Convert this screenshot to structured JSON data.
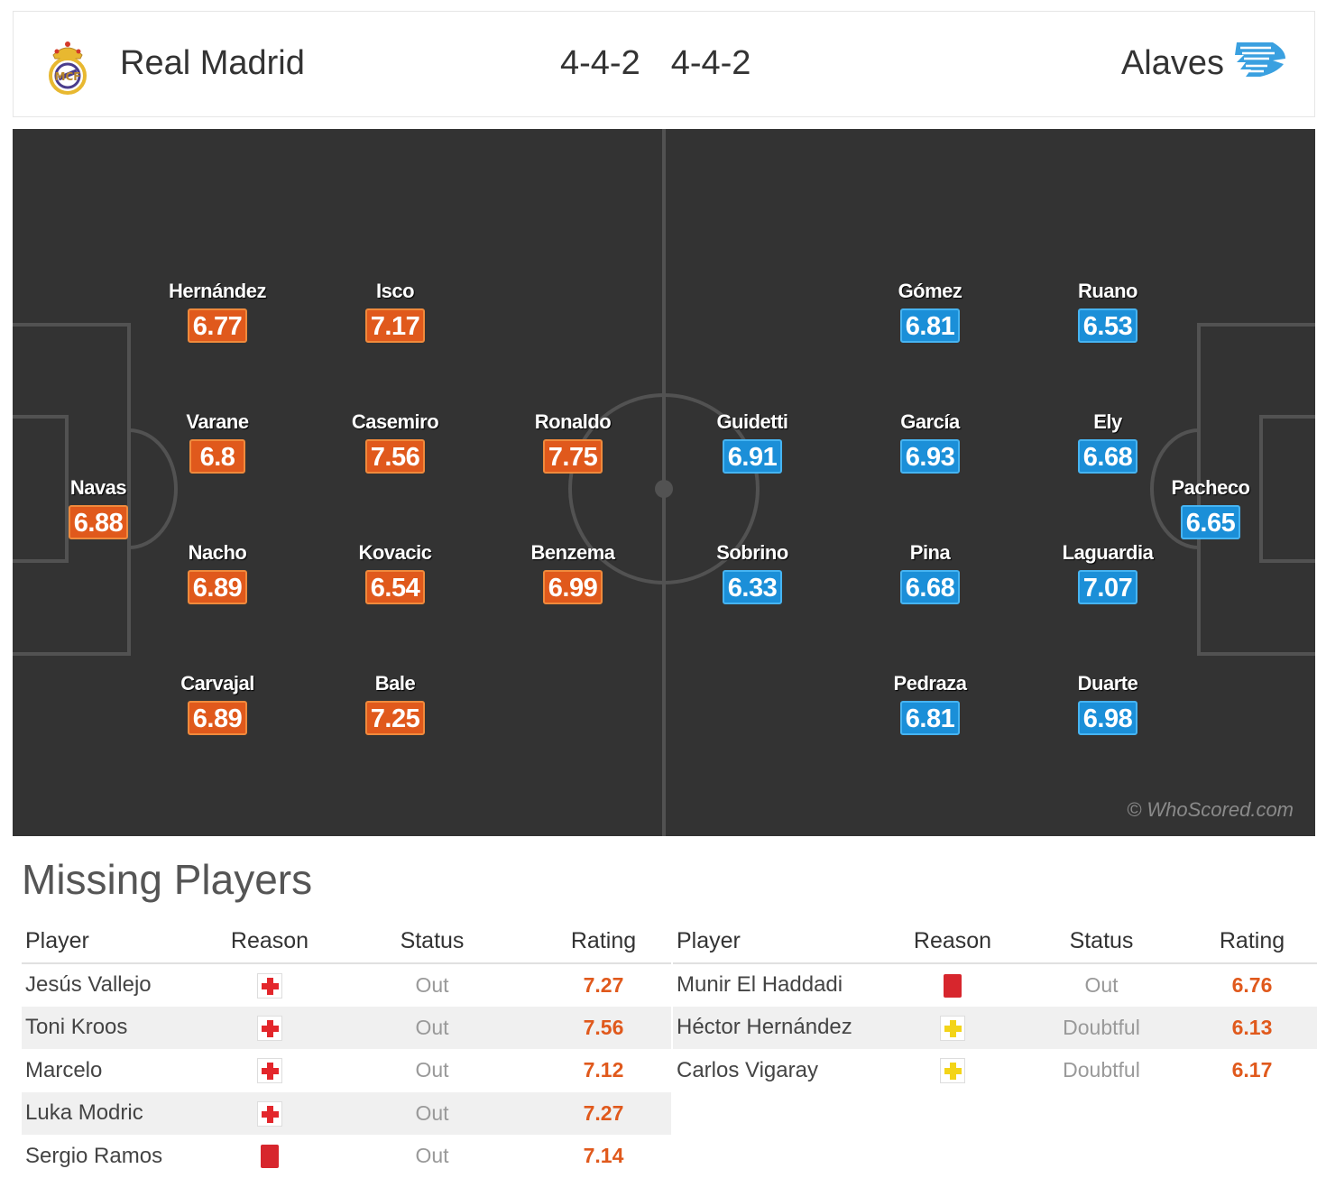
{
  "header": {
    "home_team": "Real Madrid",
    "home_formation": "4-4-2",
    "away_formation": "4-4-2",
    "away_team": "Alaves",
    "home_crest_icon": "real-madrid-crest-icon",
    "away_crest_icon": "alaves-crest-icon"
  },
  "pitch": {
    "watermark": "© WhoScored.com",
    "home_color": "#e0591c",
    "away_color": "#1b8fd8",
    "home_players": [
      {
        "name": "Navas",
        "rating": "6.88"
      },
      {
        "name": "Hernández",
        "rating": "6.77"
      },
      {
        "name": "Varane",
        "rating": "6.8"
      },
      {
        "name": "Nacho",
        "rating": "6.89"
      },
      {
        "name": "Carvajal",
        "rating": "6.89"
      },
      {
        "name": "Isco",
        "rating": "7.17"
      },
      {
        "name": "Casemiro",
        "rating": "7.56"
      },
      {
        "name": "Kovacic",
        "rating": "6.54"
      },
      {
        "name": "Bale",
        "rating": "7.25"
      },
      {
        "name": "Ronaldo",
        "rating": "7.75"
      },
      {
        "name": "Benzema",
        "rating": "6.99"
      }
    ],
    "away_players": [
      {
        "name": "Guidetti",
        "rating": "6.91"
      },
      {
        "name": "Sobrino",
        "rating": "6.33"
      },
      {
        "name": "Gómez",
        "rating": "6.81"
      },
      {
        "name": "García",
        "rating": "6.93"
      },
      {
        "name": "Pina",
        "rating": "6.68"
      },
      {
        "name": "Pedraza",
        "rating": "6.81"
      },
      {
        "name": "Ruano",
        "rating": "6.53"
      },
      {
        "name": "Ely",
        "rating": "6.68"
      },
      {
        "name": "Laguardia",
        "rating": "7.07"
      },
      {
        "name": "Duarte",
        "rating": "6.98"
      },
      {
        "name": "Pacheco",
        "rating": "6.65"
      }
    ]
  },
  "missing": {
    "title": "Missing Players",
    "columns": {
      "player": "Player",
      "reason": "Reason",
      "status": "Status",
      "rating": "Rating"
    },
    "home": [
      {
        "player": "Jesús Vallejo",
        "reason_icon": "injury-icon",
        "status": "Out",
        "rating": "7.27"
      },
      {
        "player": "Toni Kroos",
        "reason_icon": "injury-icon",
        "status": "Out",
        "rating": "7.56"
      },
      {
        "player": "Marcelo",
        "reason_icon": "injury-icon",
        "status": "Out",
        "rating": "7.12"
      },
      {
        "player": "Luka Modric",
        "reason_icon": "injury-icon",
        "status": "Out",
        "rating": "7.27"
      },
      {
        "player": "Sergio Ramos",
        "reason_icon": "red-card-icon",
        "status": "Out",
        "rating": "7.14"
      }
    ],
    "away": [
      {
        "player": "Munir El Haddadi",
        "reason_icon": "red-card-icon",
        "status": "Out",
        "rating": "6.76"
      },
      {
        "player": "Héctor Hernández",
        "reason_icon": "doubtful-icon",
        "status": "Doubtful",
        "rating": "6.13"
      },
      {
        "player": "Carlos Vigaray",
        "reason_icon": "doubtful-icon",
        "status": "Doubtful",
        "rating": "6.17"
      }
    ]
  }
}
